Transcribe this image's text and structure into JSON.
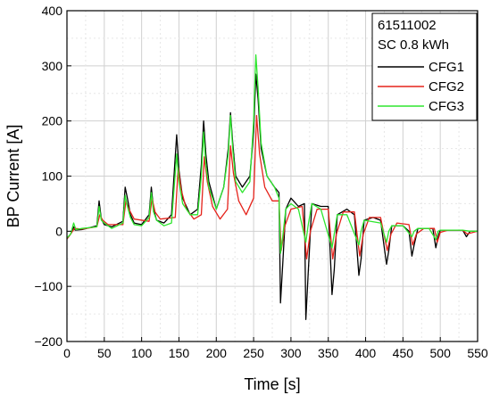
{
  "chart_data": {
    "type": "line",
    "title": "",
    "xlabel": "Time [s]",
    "ylabel": "BP Current [A]",
    "xlim": [
      0,
      550
    ],
    "ylim": [
      -200,
      400
    ],
    "xticks": [
      0,
      50,
      100,
      150,
      200,
      250,
      300,
      350,
      400,
      450,
      500,
      550
    ],
    "yticks": [
      -200,
      -100,
      0,
      100,
      200,
      300,
      400
    ],
    "x_tick_labels": [
      "0",
      "50",
      "100",
      "150",
      "200",
      "250",
      "300",
      "350",
      "400",
      "450",
      "500",
      "550"
    ],
    "y_tick_labels": [
      "−200",
      "−100",
      "0",
      "100",
      "200",
      "300",
      "400"
    ],
    "grid": true,
    "legend_position": "top-right",
    "legend_header": [
      "61511002",
      "SC 0.8 kWh"
    ],
    "series": [
      {
        "name": "CFG1",
        "color": "#000000",
        "points": [
          [
            0,
            -14
          ],
          [
            5,
            -5
          ],
          [
            9,
            8
          ],
          [
            11,
            2
          ],
          [
            20,
            3
          ],
          [
            40,
            10
          ],
          [
            43,
            55
          ],
          [
            46,
            22
          ],
          [
            50,
            12
          ],
          [
            60,
            8
          ],
          [
            75,
            18
          ],
          [
            78,
            80
          ],
          [
            81,
            60
          ],
          [
            85,
            30
          ],
          [
            90,
            15
          ],
          [
            100,
            12
          ],
          [
            110,
            30
          ],
          [
            113,
            80
          ],
          [
            116,
            40
          ],
          [
            120,
            20
          ],
          [
            130,
            15
          ],
          [
            140,
            30
          ],
          [
            147,
            175
          ],
          [
            150,
            110
          ],
          [
            155,
            60
          ],
          [
            165,
            30
          ],
          [
            175,
            40
          ],
          [
            180,
            120
          ],
          [
            183,
            200
          ],
          [
            186,
            140
          ],
          [
            190,
            90
          ],
          [
            200,
            40
          ],
          [
            210,
            80
          ],
          [
            216,
            150
          ],
          [
            219,
            215
          ],
          [
            222,
            160
          ],
          [
            226,
            100
          ],
          [
            235,
            80
          ],
          [
            245,
            100
          ],
          [
            250,
            180
          ],
          [
            253,
            285
          ],
          [
            256,
            240
          ],
          [
            260,
            150
          ],
          [
            268,
            100
          ],
          [
            278,
            80
          ],
          [
            284,
            70
          ],
          [
            286,
            -130
          ],
          [
            289,
            -60
          ],
          [
            293,
            40
          ],
          [
            300,
            60
          ],
          [
            310,
            45
          ],
          [
            318,
            50
          ],
          [
            320,
            -160
          ],
          [
            323,
            -80
          ],
          [
            328,
            50
          ],
          [
            340,
            45
          ],
          [
            350,
            45
          ],
          [
            355,
            -115
          ],
          [
            358,
            -70
          ],
          [
            362,
            30
          ],
          [
            375,
            40
          ],
          [
            385,
            30
          ],
          [
            391,
            -80
          ],
          [
            394,
            -50
          ],
          [
            398,
            20
          ],
          [
            410,
            25
          ],
          [
            420,
            20
          ],
          [
            428,
            -60
          ],
          [
            431,
            -35
          ],
          [
            435,
            10
          ],
          [
            450,
            10
          ],
          [
            458,
            0
          ],
          [
            462,
            -45
          ],
          [
            465,
            -25
          ],
          [
            470,
            5
          ],
          [
            490,
            5
          ],
          [
            494,
            -30
          ],
          [
            497,
            -10
          ],
          [
            500,
            2
          ],
          [
            530,
            2
          ],
          [
            535,
            -10
          ],
          [
            540,
            0
          ],
          [
            550,
            0
          ]
        ]
      },
      {
        "name": "CFG2",
        "color": "#e5231b",
        "points": [
          [
            0,
            -14
          ],
          [
            5,
            -5
          ],
          [
            10,
            5
          ],
          [
            20,
            4
          ],
          [
            40,
            8
          ],
          [
            44,
            30
          ],
          [
            48,
            20
          ],
          [
            55,
            12
          ],
          [
            75,
            12
          ],
          [
            79,
            55
          ],
          [
            83,
            40
          ],
          [
            90,
            22
          ],
          [
            110,
            18
          ],
          [
            114,
            60
          ],
          [
            118,
            35
          ],
          [
            125,
            22
          ],
          [
            145,
            25
          ],
          [
            149,
            115
          ],
          [
            153,
            75
          ],
          [
            160,
            40
          ],
          [
            170,
            22
          ],
          [
            180,
            30
          ],
          [
            184,
            135
          ],
          [
            188,
            90
          ],
          [
            195,
            45
          ],
          [
            205,
            22
          ],
          [
            215,
            40
          ],
          [
            219,
            155
          ],
          [
            223,
            105
          ],
          [
            230,
            55
          ],
          [
            240,
            30
          ],
          [
            250,
            60
          ],
          [
            254,
            210
          ],
          [
            258,
            140
          ],
          [
            265,
            80
          ],
          [
            275,
            55
          ],
          [
            284,
            55
          ],
          [
            287,
            -35
          ],
          [
            292,
            10
          ],
          [
            300,
            40
          ],
          [
            315,
            45
          ],
          [
            321,
            -50
          ],
          [
            326,
            0
          ],
          [
            335,
            40
          ],
          [
            350,
            40
          ],
          [
            356,
            -50
          ],
          [
            361,
            -5
          ],
          [
            370,
            35
          ],
          [
            385,
            35
          ],
          [
            392,
            -45
          ],
          [
            397,
            -5
          ],
          [
            405,
            25
          ],
          [
            420,
            25
          ],
          [
            429,
            -35
          ],
          [
            434,
            -5
          ],
          [
            442,
            15
          ],
          [
            458,
            12
          ],
          [
            463,
            -25
          ],
          [
            468,
            -5
          ],
          [
            478,
            5
          ],
          [
            492,
            5
          ],
          [
            496,
            -20
          ],
          [
            500,
            -2
          ],
          [
            510,
            2
          ],
          [
            530,
            2
          ],
          [
            536,
            -5
          ],
          [
            550,
            0
          ]
        ]
      },
      {
        "name": "CFG3",
        "color": "#2ee62e",
        "points": [
          [
            0,
            -12
          ],
          [
            5,
            -5
          ],
          [
            9,
            15
          ],
          [
            12,
            3
          ],
          [
            20,
            5
          ],
          [
            40,
            8
          ],
          [
            43,
            45
          ],
          [
            46,
            20
          ],
          [
            50,
            15
          ],
          [
            60,
            5
          ],
          [
            75,
            15
          ],
          [
            78,
            65
          ],
          [
            81,
            45
          ],
          [
            85,
            25
          ],
          [
            90,
            12
          ],
          [
            100,
            10
          ],
          [
            110,
            25
          ],
          [
            113,
            70
          ],
          [
            116,
            35
          ],
          [
            120,
            20
          ],
          [
            130,
            10
          ],
          [
            140,
            15
          ],
          [
            147,
            140
          ],
          [
            150,
            90
          ],
          [
            155,
            50
          ],
          [
            165,
            30
          ],
          [
            175,
            30
          ],
          [
            180,
            100
          ],
          [
            183,
            180
          ],
          [
            186,
            120
          ],
          [
            190,
            80
          ],
          [
            200,
            40
          ],
          [
            210,
            80
          ],
          [
            216,
            140
          ],
          [
            219,
            210
          ],
          [
            222,
            150
          ],
          [
            226,
            90
          ],
          [
            235,
            70
          ],
          [
            245,
            90
          ],
          [
            250,
            200
          ],
          [
            253,
            320
          ],
          [
            256,
            260
          ],
          [
            260,
            160
          ],
          [
            268,
            100
          ],
          [
            278,
            80
          ],
          [
            284,
            60
          ],
          [
            286,
            -40
          ],
          [
            289,
            -10
          ],
          [
            293,
            40
          ],
          [
            300,
            50
          ],
          [
            310,
            40
          ],
          [
            320,
            -20
          ],
          [
            323,
            10
          ],
          [
            328,
            50
          ],
          [
            340,
            40
          ],
          [
            355,
            -30
          ],
          [
            358,
            -5
          ],
          [
            362,
            30
          ],
          [
            375,
            30
          ],
          [
            391,
            -25
          ],
          [
            394,
            0
          ],
          [
            398,
            20
          ],
          [
            420,
            15
          ],
          [
            428,
            -20
          ],
          [
            431,
            0
          ],
          [
            435,
            10
          ],
          [
            450,
            10
          ],
          [
            462,
            -10
          ],
          [
            465,
            0
          ],
          [
            470,
            5
          ],
          [
            485,
            5
          ],
          [
            494,
            -15
          ],
          [
            497,
            0
          ],
          [
            500,
            2
          ],
          [
            530,
            2
          ],
          [
            540,
            0
          ],
          [
            550,
            0
          ]
        ]
      }
    ]
  }
}
